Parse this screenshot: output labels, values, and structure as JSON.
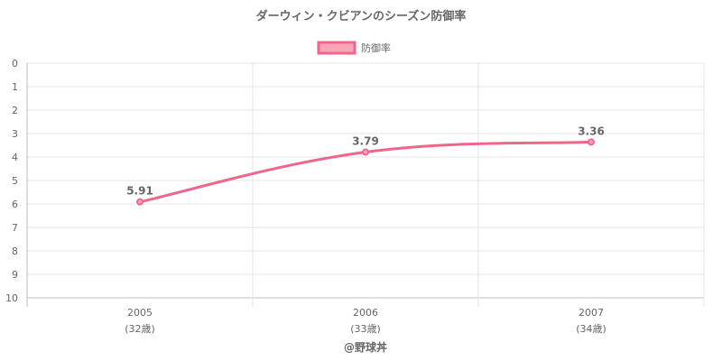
{
  "chart_data": {
    "type": "line",
    "title": "ダーウィン・クビアンのシーズン防御率",
    "categories": [
      "2005",
      "2006",
      "2007"
    ],
    "age_labels": [
      "(32歳)",
      "(33歳)",
      "(34歳)"
    ],
    "series": [
      {
        "name": "防御率",
        "values": [
          5.91,
          3.79,
          3.36
        ],
        "data_labels": [
          "5.91",
          "3.79",
          "3.36"
        ],
        "color": "#f0668a",
        "fill": "#f7a6ba"
      }
    ],
    "y_axis": {
      "reversed": true,
      "ylim": [
        0,
        10
      ],
      "ticks": [
        "0",
        "1",
        "2",
        "3",
        "4",
        "5",
        "6",
        "7",
        "8",
        "9",
        "10"
      ]
    },
    "grid": true,
    "legend_position": "top-center"
  },
  "footer": "@野球丼"
}
